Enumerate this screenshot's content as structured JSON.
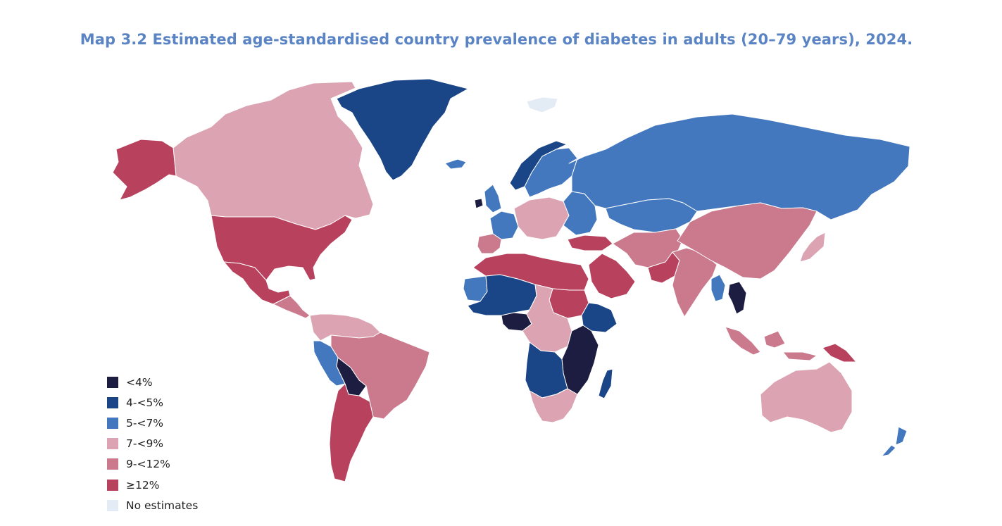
{
  "title": "Map 3.2 Estimated age-standardised country prevalence of diabetes in adults (20–79 years), 2024.",
  "colors": {
    "title": "#5b84c4",
    "lt4": "#1d1d42",
    "c4_5": "#1a4586",
    "c5_7": "#4378bf",
    "c7_9": "#dca3b2",
    "c9_12": "#cb7a8e",
    "ge12": "#b8425e",
    "no_est": "#e3ebf5"
  },
  "legend": [
    {
      "label": "<4%",
      "color": "#1d1d42"
    },
    {
      "label": "4-<5%",
      "color": "#1a4586"
    },
    {
      "label": "5-<7%",
      "color": "#4378bf"
    },
    {
      "label": "7-<9%",
      "color": "#dca3b2"
    },
    {
      "label": "9-<12%",
      "color": "#cb7a8e"
    },
    {
      "label": "≥12%",
      "color": "#b8425e"
    },
    {
      "label": "No estimates",
      "color": "#e3ebf5"
    }
  ],
  "regions": [
    {
      "name": "canada",
      "bin": "7-<9%"
    },
    {
      "name": "alaska",
      "bin": "≥12%"
    },
    {
      "name": "usa",
      "bin": "≥12%"
    },
    {
      "name": "mexico",
      "bin": "≥12%"
    },
    {
      "name": "central-america",
      "bin": "9-<12%"
    },
    {
      "name": "greenland",
      "bin": "4-<5%"
    },
    {
      "name": "iceland",
      "bin": "5-<7%"
    },
    {
      "name": "colombia-venezuela",
      "bin": "7-<9%"
    },
    {
      "name": "brazil",
      "bin": "9-<12%"
    },
    {
      "name": "peru",
      "bin": "5-<7%"
    },
    {
      "name": "bolivia",
      "bin": "<4%"
    },
    {
      "name": "argentina-chile",
      "bin": "≥12%"
    },
    {
      "name": "uk",
      "bin": "5-<7%"
    },
    {
      "name": "ireland",
      "bin": "<4%"
    },
    {
      "name": "norway",
      "bin": "4-<5%"
    },
    {
      "name": "sweden-finland",
      "bin": "5-<7%"
    },
    {
      "name": "france",
      "bin": "5-<7%"
    },
    {
      "name": "iberia",
      "bin": "9-<12%"
    },
    {
      "name": "central-europe",
      "bin": "7-<9%"
    },
    {
      "name": "eastern-europe",
      "bin": "5-<7%"
    },
    {
      "name": "russia",
      "bin": "5-<7%"
    },
    {
      "name": "kazakhstan",
      "bin": "5-<7%"
    },
    {
      "name": "turkey",
      "bin": "≥12%"
    },
    {
      "name": "north-africa",
      "bin": "≥12%"
    },
    {
      "name": "sahel-west",
      "bin": "4-<5%"
    },
    {
      "name": "mauritania",
      "bin": "5-<7%"
    },
    {
      "name": "nigeria",
      "bin": "<4%"
    },
    {
      "name": "central-africa",
      "bin": "7-<9%"
    },
    {
      "name": "sudan",
      "bin": "≥12%"
    },
    {
      "name": "ethiopia",
      "bin": "4-<5%"
    },
    {
      "name": "east-africa",
      "bin": "<4%"
    },
    {
      "name": "drc-angola",
      "bin": "4-<5%"
    },
    {
      "name": "southern-africa",
      "bin": "7-<9%"
    },
    {
      "name": "madagascar",
      "bin": "4-<5%"
    },
    {
      "name": "arabia",
      "bin": "≥12%"
    },
    {
      "name": "iran-central-asia",
      "bin": "9-<12%"
    },
    {
      "name": "pakistan",
      "bin": "≥12%"
    },
    {
      "name": "india",
      "bin": "9-<12%"
    },
    {
      "name": "china-mongolia",
      "bin": "9-<12%"
    },
    {
      "name": "japan",
      "bin": "7-<9%"
    },
    {
      "name": "myanmar",
      "bin": "5-<7%"
    },
    {
      "name": "indochina",
      "bin": "<4%"
    },
    {
      "name": "indonesia",
      "bin": "9-<12%"
    },
    {
      "name": "papua-new-guinea",
      "bin": "≥12%"
    },
    {
      "name": "australia",
      "bin": "7-<9%"
    },
    {
      "name": "new-zealand",
      "bin": "5-<7%"
    },
    {
      "name": "svalbard",
      "bin": "No estimates"
    }
  ]
}
